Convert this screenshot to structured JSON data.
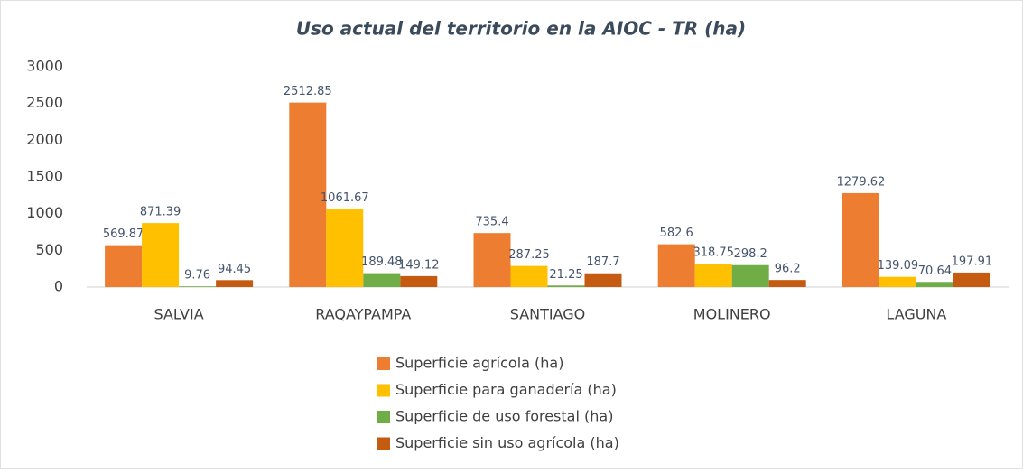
{
  "chart_data": {
    "type": "bar",
    "title": "Uso actual del territorio en la AIOC - TR (ha)",
    "categories": [
      "SALVIA",
      "RAQAYPAMPA",
      "SANTIAGO",
      "MOLINERO",
      "LAGUNA"
    ],
    "series": [
      {
        "name": "Superficie agrícola (ha)",
        "color": "#ed7d31",
        "values": [
          569.87,
          2512.85,
          735.4,
          582.6,
          1279.62
        ]
      },
      {
        "name": "Superficie para ganadería (ha)",
        "color": "#ffc000",
        "values": [
          871.39,
          1061.67,
          287.25,
          318.75,
          139.09
        ]
      },
      {
        "name": "Superficie de uso forestal (ha)",
        "color": "#70ad47",
        "values": [
          9.76,
          189.48,
          21.25,
          298.2,
          70.64
        ]
      },
      {
        "name": "Superficie sin uso agrícola (ha)",
        "color": "#c55a11",
        "values": [
          94.45,
          149.12,
          187.7,
          96.2,
          197.91
        ]
      }
    ],
    "ylim": [
      0,
      3000
    ],
    "yticks": [
      0,
      500,
      1000,
      1500,
      2000,
      2500,
      3000
    ],
    "grid": false,
    "legend": "bottom"
  }
}
